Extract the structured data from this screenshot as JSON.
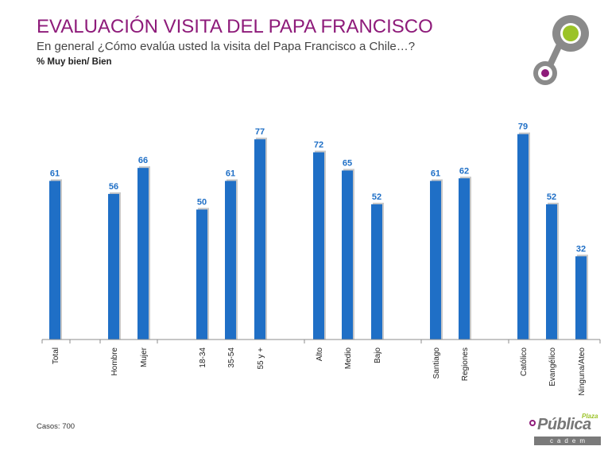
{
  "header": {
    "title": "EVALUACIÓN VISITA DEL PAPA FRANCISCO",
    "subtitle": "En general ¿Cómo evalúa usted la visita del Papa Francisco a Chile…?",
    "metric_label": "% Muy bien/ Bien"
  },
  "footer": {
    "cases": "Casos: 700",
    "brand_word": "Pública",
    "brand_plaza": "Plaza",
    "brand_cadem": "cadem"
  },
  "colors": {
    "bar": "#1f6fc6",
    "label": "#1f6fc6",
    "title": "#8e1b7a",
    "accent_green": "#9bc328",
    "logo_grey": "#8a8a8a"
  },
  "chart_data": {
    "type": "bar",
    "title": "",
    "xlabel": "",
    "ylabel": "",
    "ylim": [
      0,
      85
    ],
    "grid": false,
    "legend": "none",
    "categories": [
      "Total",
      "Hombre",
      "Mujer",
      "18-34",
      "35-54",
      "55 y +",
      "Alto",
      "Medio",
      "Bajo",
      "Santiago",
      "Regiones",
      "Católico",
      "Evangélico",
      "Ninguna/Ateo"
    ],
    "groups": [
      [
        0
      ],
      [
        1,
        2
      ],
      [
        3,
        4,
        5
      ],
      [
        6,
        7,
        8
      ],
      [
        9,
        10
      ],
      [
        11,
        12,
        13
      ]
    ],
    "values": [
      61,
      56,
      66,
      50,
      61,
      77,
      72,
      65,
      52,
      61,
      62,
      79,
      52,
      32
    ]
  }
}
